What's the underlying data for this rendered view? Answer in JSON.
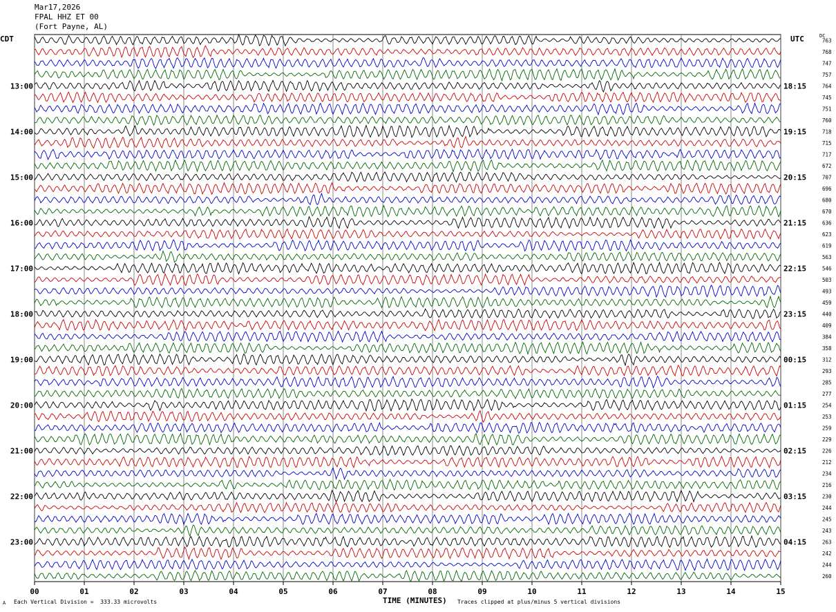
{
  "header": {
    "date": "Mar17,2026",
    "station": "FPAL HHZ ET 00",
    "location": "(Fort Payne, AL)"
  },
  "left_timezone": "CDT",
  "right_timezone": "UTC",
  "dc_label": "DC",
  "footer": {
    "corner_mark": "A",
    "scale_note": "Each Vertical Division =  333.33 microvolts",
    "clip_note": "Traces clipped at plus/minus 5 vertical divisions"
  },
  "colors": {
    "black": "#000000",
    "red": "#cc0000",
    "blue": "#0000cc",
    "green": "#006600",
    "grid": "#555555"
  },
  "chart_data": {
    "type": "line",
    "title": "",
    "xlabel": "TIME (MINUTES)",
    "ylabel": "",
    "xlim": [
      0,
      15
    ],
    "grid": true,
    "x_ticks": [
      "00",
      "01",
      "02",
      "03",
      "04",
      "05",
      "06",
      "07",
      "08",
      "09",
      "10",
      "11",
      "12",
      "13",
      "14",
      "15"
    ],
    "left_hour_labels": [
      "13:00",
      "14:00",
      "15:00",
      "16:00",
      "17:00",
      "18:00",
      "19:00",
      "20:00",
      "21:00",
      "22:00",
      "23:00"
    ],
    "right_hour_labels": [
      "18:15",
      "19:15",
      "20:15",
      "21:15",
      "22:15",
      "23:15",
      "00:15",
      "01:15",
      "02:15",
      "03:15",
      "04:15"
    ],
    "trace_colors_cycle": [
      "black",
      "red",
      "blue",
      "green"
    ],
    "dc_offsets": [
      "763",
      "768",
      "747",
      "757",
      "764",
      "745",
      "751",
      "760",
      "718",
      "715",
      "717",
      "672",
      "707",
      "696",
      "680",
      "670",
      "636",
      "623",
      "619",
      "563",
      "546",
      "503",
      "493",
      "459",
      "440",
      "409",
      "384",
      "358",
      "312",
      "293",
      "285",
      "277",
      "254",
      "253",
      "259",
      "229",
      "226",
      "212",
      "234",
      "216",
      "230",
      "244",
      "245",
      "243",
      "263",
      "242",
      "244",
      "260"
    ]
  }
}
